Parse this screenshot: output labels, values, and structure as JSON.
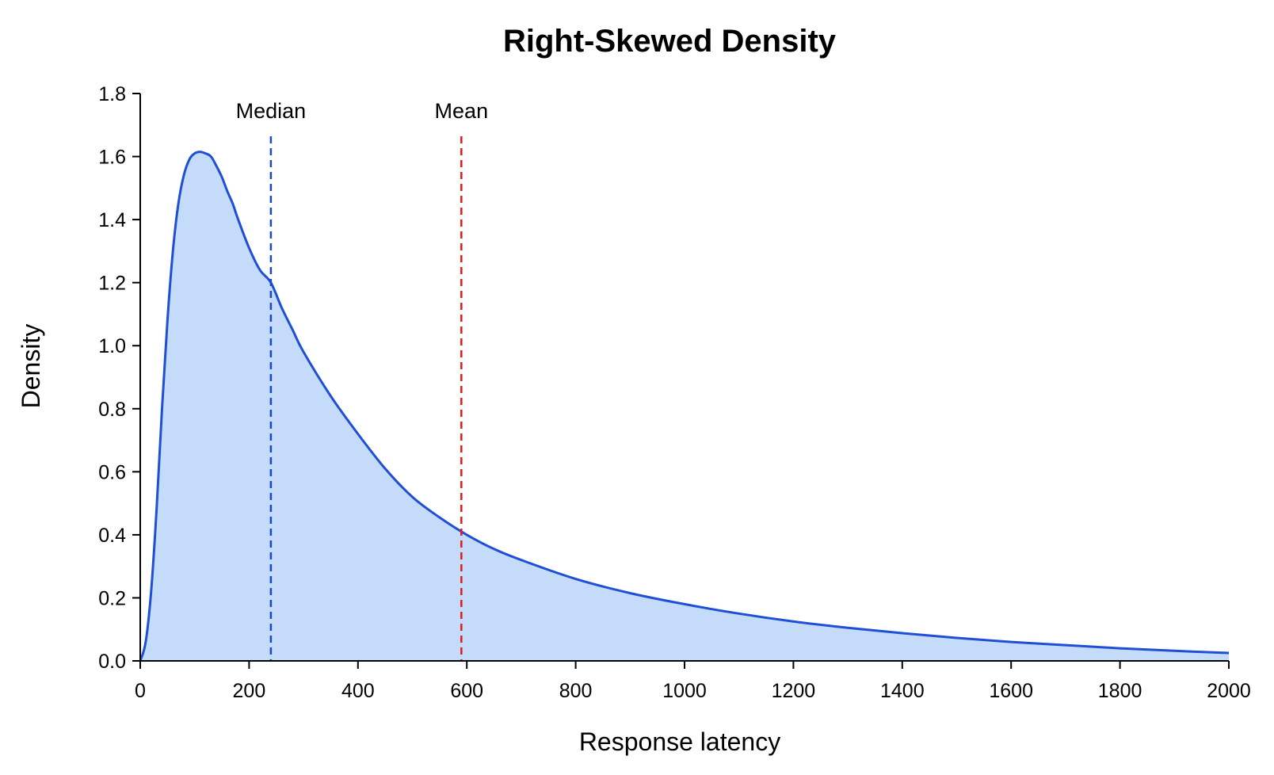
{
  "chart_data": {
    "type": "area",
    "title": "Right-Skewed Density",
    "xlabel": "Response latency",
    "ylabel": "Density",
    "xlim": [
      0,
      2000
    ],
    "ylim": [
      0,
      1.8
    ],
    "x_ticks": [
      "0",
      "200",
      "400",
      "600",
      "800",
      "1000",
      "1200",
      "1400",
      "1600",
      "1800",
      "2000"
    ],
    "y_ticks": [
      "0.0",
      "0.2",
      "0.4",
      "0.6",
      "0.8",
      "1.0",
      "1.2",
      "1.4",
      "1.6",
      "1.8"
    ],
    "grid": false,
    "legend": "none",
    "series": [
      {
        "x": [
          0,
          10,
          20,
          30,
          40,
          50,
          60,
          70,
          80,
          90,
          100,
          110,
          120,
          130,
          140,
          150,
          160,
          170,
          180,
          200,
          220,
          240,
          260,
          280,
          300,
          350,
          400,
          450,
          500,
          550,
          600,
          650,
          700,
          800,
          900,
          1000,
          1100,
          1200,
          1300,
          1400,
          1500,
          1600,
          1700,
          1800,
          1900,
          2000
        ],
        "y": [
          0.0,
          0.06,
          0.22,
          0.48,
          0.8,
          1.08,
          1.3,
          1.45,
          1.54,
          1.59,
          1.61,
          1.615,
          1.61,
          1.6,
          1.57,
          1.535,
          1.49,
          1.45,
          1.4,
          1.31,
          1.24,
          1.2,
          1.12,
          1.05,
          0.98,
          0.84,
          0.72,
          0.61,
          0.52,
          0.455,
          0.4,
          0.355,
          0.32,
          0.26,
          0.215,
          0.18,
          0.15,
          0.125,
          0.105,
          0.088,
          0.073,
          0.06,
          0.05,
          0.04,
          0.032,
          0.025
        ]
      }
    ],
    "annotations": [
      {
        "label": "Median",
        "x": 240,
        "color": "#1a47cc"
      },
      {
        "label": "Mean",
        "x": 590,
        "color": "#e01b1b"
      }
    ],
    "colors": {
      "curve": "#1f4fd6",
      "fill": "#c4dbfa",
      "median_line": "#1a47cc",
      "mean_line": "#e01b1b"
    }
  }
}
